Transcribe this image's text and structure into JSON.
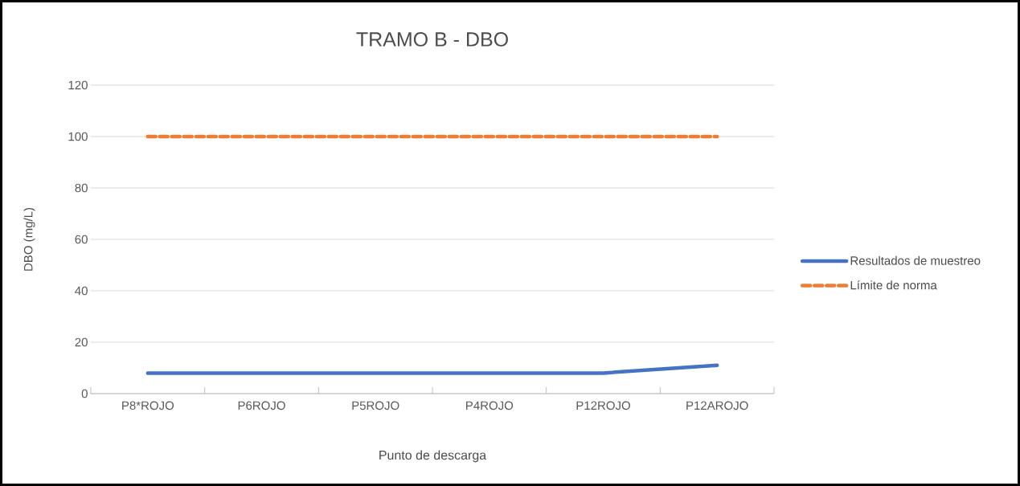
{
  "chart_data": {
    "type": "line",
    "title": "TRAMO B - DBO",
    "xlabel": "Punto de descarga",
    "ylabel": "DBO (mg/L)",
    "categories": [
      "P8*ROJO",
      "P6ROJO",
      "P5ROJO",
      "P4ROJO",
      "P12ROJO",
      "P12AROJO"
    ],
    "series": [
      {
        "name": "Resultados de muestreo",
        "color": "#4472c4",
        "line_style": "solid",
        "values": [
          8,
          8,
          8,
          8,
          8,
          11
        ]
      },
      {
        "name": "Límite de norma",
        "color": "#ed7d31",
        "line_style": "dashed",
        "values": [
          100,
          100,
          100,
          100,
          100,
          100
        ]
      }
    ],
    "ylim": [
      0,
      120
    ],
    "yticks": [
      0,
      20,
      40,
      60,
      80,
      100,
      120
    ],
    "grid": "y",
    "legend": "right"
  }
}
